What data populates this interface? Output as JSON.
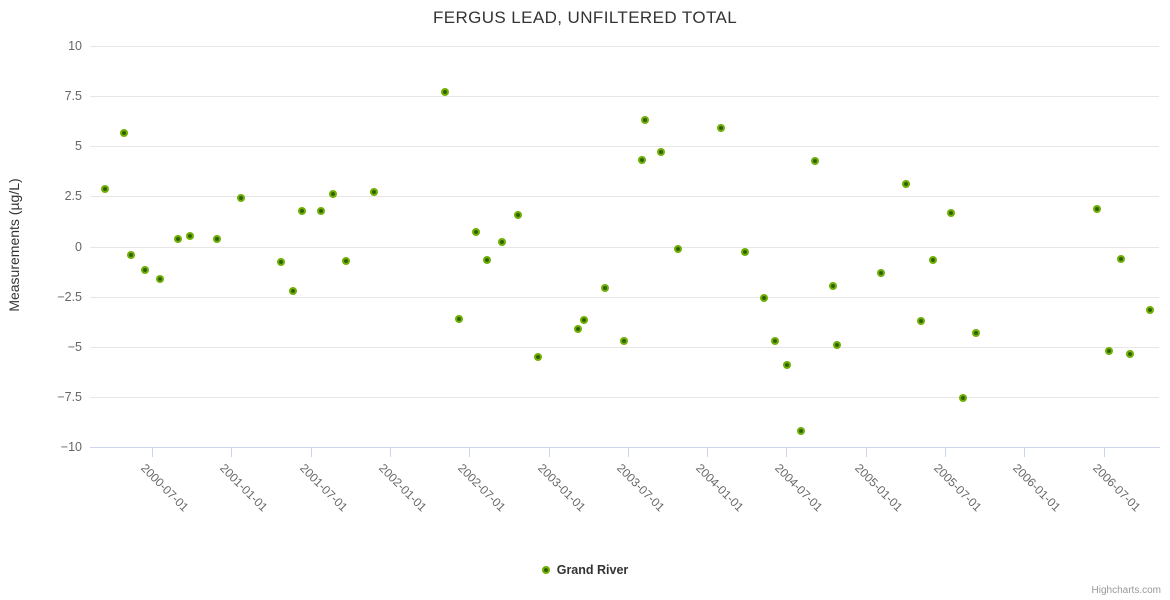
{
  "title": "FERGUS LEAD, UNFILTERED TOTAL",
  "y_axis": {
    "title": "Measurements (µg/L)",
    "ticks": [
      10,
      7.5,
      5,
      2.5,
      0,
      -2.5,
      -5,
      -7.5,
      -10
    ],
    "tick_labels": [
      "10",
      "7.5",
      "5",
      "2.5",
      "0",
      "−2.5",
      "−5",
      "−7.5",
      "−10"
    ]
  },
  "x_axis": {
    "tick_labels": [
      "2000-07-01",
      "2001-01-01",
      "2001-07-01",
      "2002-01-01",
      "2002-07-01",
      "2003-01-01",
      "2003-07-01",
      "2004-01-01",
      "2004-07-01",
      "2005-01-01",
      "2005-07-01",
      "2006-01-01",
      "2006-07-01"
    ]
  },
  "legend": {
    "label": "Grand River"
  },
  "credits": "Highcharts.com",
  "colors": {
    "marker_outer": "#70af03",
    "marker_inner": "#2e6101",
    "marker_edge": "#589102",
    "grid": "#e6e6e6",
    "axis": "#ccd6eb",
    "label": "#666666",
    "title": "#333333",
    "legend_text": "#333333",
    "credits": "#999999"
  },
  "chart_data": {
    "type": "scatter",
    "title": "FERGUS LEAD, UNFILTERED TOTAL",
    "xlabel": "",
    "ylabel": "Measurements (µg/L)",
    "ylim": [
      -10,
      10
    ],
    "x_range": [
      "2000-02-10",
      "2006-11-07"
    ],
    "grid": true,
    "legend_position": "bottom",
    "series": [
      {
        "name": "Grand River",
        "points": [
          [
            "2000-03-13",
            2.85
          ],
          [
            "2000-04-28",
            5.65
          ],
          [
            "2000-05-13",
            -0.4
          ],
          [
            "2000-06-15",
            -1.15
          ],
          [
            "2000-07-19",
            -1.6
          ],
          [
            "2000-08-30",
            0.35
          ],
          [
            "2000-09-28",
            0.5
          ],
          [
            "2000-11-29",
            0.35
          ],
          [
            "2001-01-23",
            2.4
          ],
          [
            "2001-04-23",
            -0.75
          ],
          [
            "2001-05-22",
            -2.2
          ],
          [
            "2001-06-11",
            1.75
          ],
          [
            "2001-07-24",
            1.75
          ],
          [
            "2001-08-22",
            2.6
          ],
          [
            "2001-09-22",
            -0.7
          ],
          [
            "2001-11-26",
            2.7
          ],
          [
            "2002-05-05",
            7.7
          ],
          [
            "2002-06-08",
            -3.6
          ],
          [
            "2002-07-16",
            0.7
          ],
          [
            "2002-08-11",
            -0.65
          ],
          [
            "2002-09-15",
            0.2
          ],
          [
            "2002-10-21",
            1.55
          ],
          [
            "2002-12-08",
            -5.5
          ],
          [
            "2003-03-08",
            -4.1
          ],
          [
            "2003-03-22",
            -3.65
          ],
          [
            "2003-05-10",
            -2.05
          ],
          [
            "2003-06-22",
            -4.7
          ],
          [
            "2003-08-04",
            4.3
          ],
          [
            "2003-08-10",
            6.3
          ],
          [
            "2003-09-16",
            4.7
          ],
          [
            "2003-10-25",
            -0.1
          ],
          [
            "2004-02-02",
            5.9
          ],
          [
            "2004-03-27",
            -0.25
          ],
          [
            "2004-05-10",
            -2.55
          ],
          [
            "2004-06-05",
            -4.7
          ],
          [
            "2004-07-03",
            -5.9
          ],
          [
            "2004-08-05",
            -9.2
          ],
          [
            "2004-09-05",
            4.25
          ],
          [
            "2004-10-16",
            -1.95
          ],
          [
            "2004-10-26",
            -4.9
          ],
          [
            "2005-02-05",
            -1.3
          ],
          [
            "2005-04-02",
            3.1
          ],
          [
            "2005-05-06",
            -3.7
          ],
          [
            "2005-06-03",
            -0.65
          ],
          [
            "2005-07-14",
            1.65
          ],
          [
            "2005-08-11",
            -7.55
          ],
          [
            "2005-09-11",
            -4.3
          ],
          [
            "2006-06-16",
            1.85
          ],
          [
            "2006-07-13",
            -5.2
          ],
          [
            "2006-08-10",
            -0.6
          ],
          [
            "2006-09-01",
            -5.35
          ],
          [
            "2006-10-16",
            -3.15
          ]
        ]
      }
    ]
  }
}
